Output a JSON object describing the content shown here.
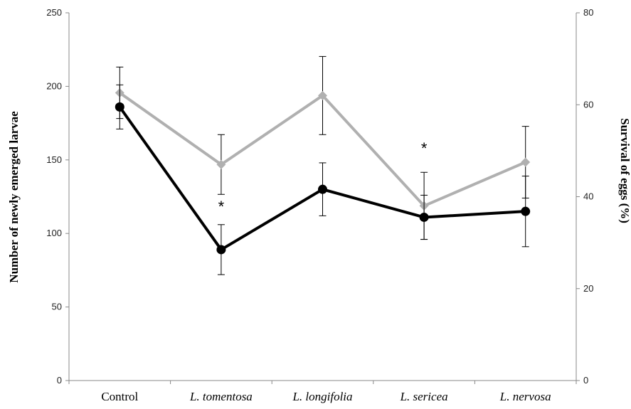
{
  "chart_data": {
    "type": "line",
    "categories": [
      "Control",
      "L. tomentosa",
      "L. longifolia",
      "L. sericea",
      "L. nervosa"
    ],
    "category_italic": [
      false,
      true,
      true,
      true,
      true
    ],
    "y_left": {
      "label": "Number of newly emerged larvae",
      "ylim": [
        0,
        250
      ],
      "ticks": [
        0,
        50,
        100,
        150,
        200,
        250
      ]
    },
    "y_right": {
      "label": "Survival of eggs (%)",
      "ylim": [
        0,
        80
      ],
      "ticks": [
        0,
        20,
        40,
        60,
        80
      ]
    },
    "series": [
      {
        "axis": "left",
        "color": "#000000",
        "marker": "circle",
        "values": [
          186,
          89,
          130,
          111,
          115
        ],
        "err": [
          15,
          17,
          18,
          15,
          24
        ]
      },
      {
        "axis": "right",
        "color": "#b0b0b0",
        "marker": "diamond",
        "values": [
          62.6,
          47,
          62,
          38,
          47.5
        ],
        "err": [
          5.6,
          6.5,
          8.5,
          7.3,
          7.8
        ]
      }
    ],
    "annotations": [
      {
        "category_index": 1,
        "text": "*"
      },
      {
        "category_index": 3,
        "text": "*"
      }
    ],
    "grid": false,
    "legend": "none"
  }
}
